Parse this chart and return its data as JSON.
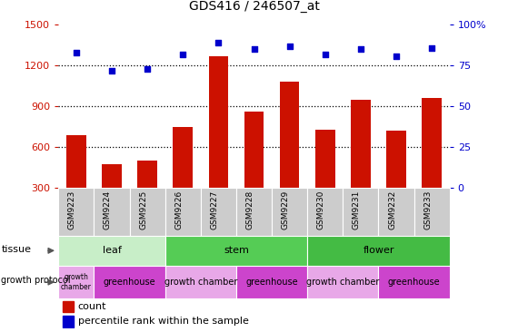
{
  "title": "GDS416 / 246507_at",
  "samples": [
    "GSM9223",
    "GSM9224",
    "GSM9225",
    "GSM9226",
    "GSM9227",
    "GSM9228",
    "GSM9229",
    "GSM9230",
    "GSM9231",
    "GSM9232",
    "GSM9233"
  ],
  "counts": [
    690,
    470,
    500,
    750,
    1270,
    860,
    1080,
    730,
    950,
    720,
    960
  ],
  "percentiles": [
    83,
    72,
    73,
    82,
    89,
    85,
    87,
    82,
    85,
    81,
    86
  ],
  "bar_color": "#cc1100",
  "dot_color": "#0000cc",
  "ylim_left": [
    300,
    1500
  ],
  "ylim_right": [
    0,
    100
  ],
  "yticks_left": [
    300,
    600,
    900,
    1200,
    1500
  ],
  "yticks_right": [
    0,
    25,
    50,
    75,
    100
  ],
  "ytick_right_labels": [
    "0",
    "25",
    "50",
    "75",
    "100%"
  ],
  "grid_values": [
    600,
    900,
    1200
  ],
  "tissue_groups": [
    {
      "label": "leaf",
      "start": 0,
      "end": 3,
      "color": "#c8eec8"
    },
    {
      "label": "stem",
      "start": 3,
      "end": 7,
      "color": "#55cc55"
    },
    {
      "label": "flower",
      "start": 7,
      "end": 11,
      "color": "#44bb44"
    }
  ],
  "protocol_groups": [
    {
      "label": "growth\nchamber",
      "start": 0,
      "end": 1,
      "color": "#e8a8e8"
    },
    {
      "label": "greenhouse",
      "start": 1,
      "end": 3,
      "color": "#cc44cc"
    },
    {
      "label": "growth chamber",
      "start": 3,
      "end": 5,
      "color": "#e8a8e8"
    },
    {
      "label": "greenhouse",
      "start": 5,
      "end": 7,
      "color": "#cc44cc"
    },
    {
      "label": "growth chamber",
      "start": 7,
      "end": 9,
      "color": "#e8a8e8"
    },
    {
      "label": "greenhouse",
      "start": 9,
      "end": 11,
      "color": "#cc44cc"
    }
  ],
  "legend_count_label": "count",
  "legend_pct_label": "percentile rank within the sample",
  "tissue_row_label": "tissue",
  "protocol_row_label": "growth protocol",
  "bg_color": "#ffffff",
  "plot_bg_color": "#ffffff",
  "xtick_bg_color": "#cccccc",
  "title_color": "#000000",
  "left_axis_color": "#cc1100",
  "right_axis_color": "#0000cc"
}
